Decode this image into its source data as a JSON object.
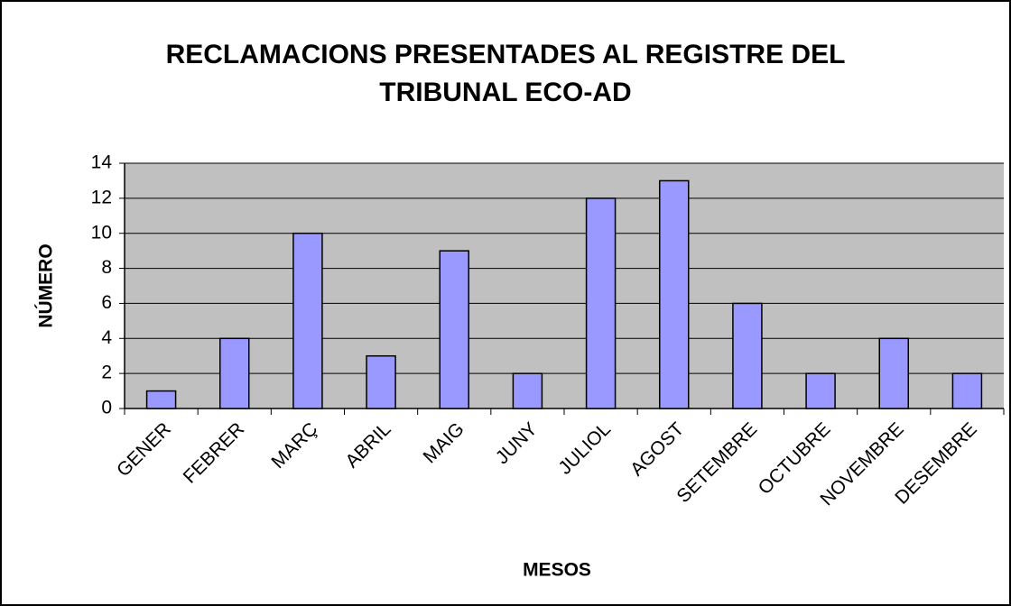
{
  "chart_data": {
    "type": "bar",
    "title": "RECLAMACIONS PRESENTADES AL REGISTRE DEL TRIBUNAL ECO-AD",
    "x_label": "MESOS",
    "y_label": "NÚMERO",
    "categories": [
      "GENER",
      "FEBRER",
      "MARÇ",
      "ABRIL",
      "MAIG",
      "JUNY",
      "JULIOL",
      "AGOST",
      "SETEMBRE",
      "OCTUBRE",
      "NOVEMBRE",
      "DESEMBRE"
    ],
    "values": [
      1,
      4,
      10,
      3,
      9,
      2,
      12,
      13,
      6,
      2,
      4,
      2
    ],
    "color": "#9999ff",
    "ylim": [
      0,
      14
    ],
    "yticks": [
      0,
      2,
      4,
      6,
      8,
      10,
      12,
      14
    ],
    "grid": true
  }
}
